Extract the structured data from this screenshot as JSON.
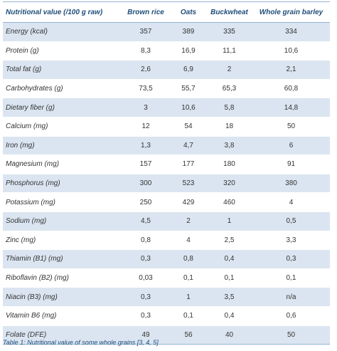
{
  "table": {
    "columns": [
      "Nutritional value (/100 g raw)",
      "Brown rice",
      "Oats",
      "Buckwheat",
      "Whole grain barley"
    ],
    "rows": [
      [
        "Energy (kcal)",
        "357",
        "389",
        "335",
        "334"
      ],
      [
        "Protein (g)",
        "8,3",
        "16,9",
        "11,1",
        "10,6"
      ],
      [
        "Total fat (g)",
        "2,6",
        "6,9",
        "2",
        "2,1"
      ],
      [
        "Carbohydrates (g)",
        "73,5",
        "55,7",
        "65,3",
        "60,8"
      ],
      [
        "Dietary fiber (g)",
        "3",
        "10,6",
        "5,8",
        "14,8"
      ],
      [
        "Calcium (mg)",
        "12",
        "54",
        "18",
        "50"
      ],
      [
        "Iron (mg)",
        "1,3",
        "4,7",
        "3,8",
        "6"
      ],
      [
        "Magnesium (mg)",
        "157",
        "177",
        "180",
        "91"
      ],
      [
        "Phosphorus (mg)",
        "300",
        "523",
        "320",
        "380"
      ],
      [
        "Potassium (mg)",
        "250",
        "429",
        "460",
        "4"
      ],
      [
        "Sodium (mg)",
        "4,5",
        "2",
        "1",
        "0,5"
      ],
      [
        "Zinc (mg)",
        "0,8",
        "4",
        "2,5",
        "3,3"
      ],
      [
        "Thiamin (B1) (mg)",
        "0,3",
        "0,8",
        "0,4",
        "0,3"
      ],
      [
        "Riboflavin (B2) (mg)",
        "0,03",
        "0,1",
        "0,1",
        "0,1"
      ],
      [
        "Niacin (B3) (mg)",
        "0,3",
        "1",
        "3,5",
        "n/a"
      ],
      [
        "Vitamin B6 (mg)",
        "0,3",
        "0,1",
        "0,4",
        "0,6"
      ],
      [
        "Folate (DFE)",
        "49",
        "56",
        "40",
        "50"
      ]
    ],
    "caption": "Table 1: Nutritional value of some whole grains [3, 4, 5]"
  }
}
